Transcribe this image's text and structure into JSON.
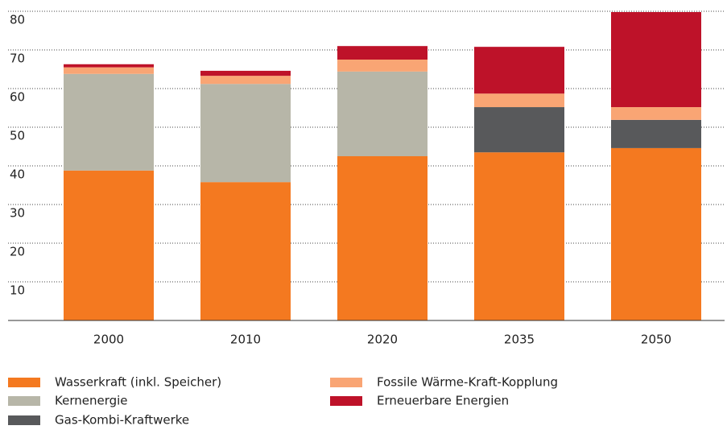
{
  "chart_data": {
    "type": "stacked_bar",
    "categories": [
      "2000",
      "2010",
      "2020",
      "2035",
      "2050"
    ],
    "series": [
      {
        "name": "Wasserkraft (inkl. Speicher)",
        "color": "#f47920",
        "values": [
          38.8,
          35.8,
          42.5,
          43.5,
          44.6
        ]
      },
      {
        "name": "Kernenergie",
        "color": "#b7b6a8",
        "values": [
          25,
          25.4,
          21.9,
          0,
          0
        ]
      },
      {
        "name": "Gas-Kombi-Kraftwerke",
        "color": "#58595b",
        "values": [
          0,
          0,
          0,
          11.7,
          7.3
        ]
      },
      {
        "name": "Fossile Wärme-Kraft-Kopplung",
        "color": "#f9a574",
        "values": [
          1.7,
          2.1,
          3.1,
          3.5,
          3.3
        ]
      },
      {
        "name": "Erneuerbare Energien",
        "color": "#be1229",
        "values": [
          0.8,
          1.3,
          3.5,
          12.1,
          24.6
        ]
      }
    ],
    "ylim": [
      0,
      80
    ],
    "yticks": [
      10,
      20,
      30,
      40,
      50,
      60,
      70,
      80
    ],
    "grid": true
  }
}
